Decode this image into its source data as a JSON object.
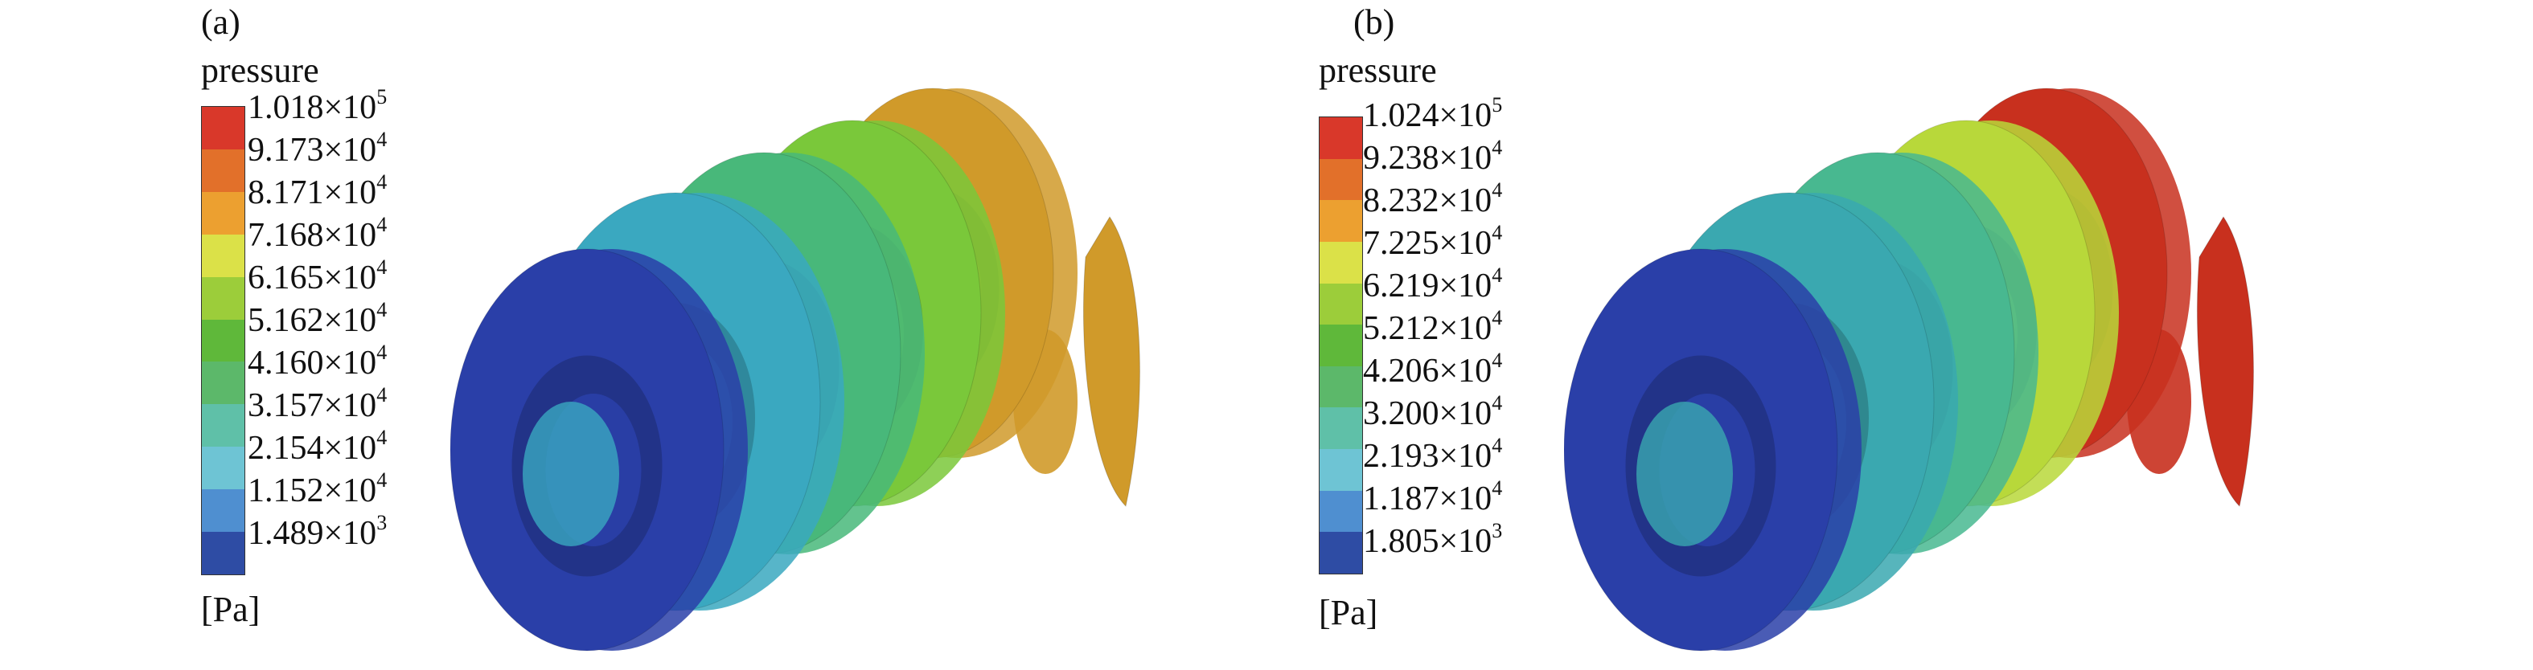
{
  "panels": [
    {
      "label": "(a)",
      "title": "pressure",
      "unit": "[Pa]",
      "ticks": [
        {
          "mantissa": "1.018×10",
          "exp": "5"
        },
        {
          "mantissa": "9.173×10",
          "exp": "4"
        },
        {
          "mantissa": "8.171×10",
          "exp": "4"
        },
        {
          "mantissa": "7.168×10",
          "exp": "4"
        },
        {
          "mantissa": "6.165×10",
          "exp": "4"
        },
        {
          "mantissa": "5.162×10",
          "exp": "4"
        },
        {
          "mantissa": "4.160×10",
          "exp": "4"
        },
        {
          "mantissa": "3.157×10",
          "exp": "4"
        },
        {
          "mantissa": "2.154×10",
          "exp": "4"
        },
        {
          "mantissa": "1.152×10",
          "exp": "4"
        },
        {
          "mantissa": "1.489×10",
          "exp": "3"
        }
      ],
      "stage_colors": [
        "#2a3fa8",
        "#3aa8c0",
        "#48b87a",
        "#7ac83a",
        "#d09a2a"
      ]
    },
    {
      "label": "(b)",
      "title": "pressure",
      "unit": "[Pa]",
      "ticks": [
        {
          "mantissa": "1.024×10",
          "exp": "5"
        },
        {
          "mantissa": "9.238×10",
          "exp": "4"
        },
        {
          "mantissa": "8.232×10",
          "exp": "4"
        },
        {
          "mantissa": "7.225×10",
          "exp": "4"
        },
        {
          "mantissa": "6.219×10",
          "exp": "4"
        },
        {
          "mantissa": "5.212×10",
          "exp": "4"
        },
        {
          "mantissa": "4.206×10",
          "exp": "4"
        },
        {
          "mantissa": "3.200×10",
          "exp": "4"
        },
        {
          "mantissa": "2.193×10",
          "exp": "4"
        },
        {
          "mantissa": "1.187×10",
          "exp": "4"
        },
        {
          "mantissa": "1.805×10",
          "exp": "3"
        }
      ],
      "stage_colors": [
        "#2a3fa8",
        "#3aa8b0",
        "#48b890",
        "#b8d83a",
        "#c8301e"
      ]
    }
  ],
  "colormap": [
    "#d9382a",
    "#e2702a",
    "#eca030",
    "#dbe148",
    "#9ccd3a",
    "#5fb83a",
    "#5cb86a",
    "#5fc0a8",
    "#6ec4d4",
    "#4f8fd0",
    "#2e4ca4"
  ]
}
